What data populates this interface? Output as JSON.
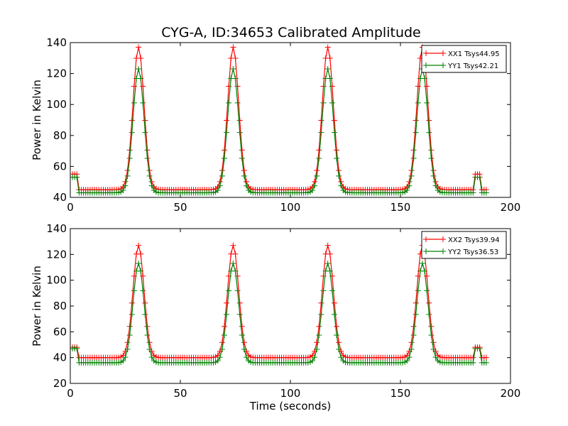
{
  "figure": {
    "title": "CYG-A, ID:34653 Calibrated Amplitude"
  },
  "chart_data": [
    {
      "type": "line",
      "title": "CYG-A, ID:34653 Calibrated Amplitude",
      "xlabel": "",
      "ylabel": "Power in Kelvin",
      "xlim": [
        0,
        200
      ],
      "ylim": [
        40,
        140
      ],
      "xticks": [
        "0",
        "50",
        "100",
        "150",
        "200"
      ],
      "yticks": [
        "40",
        "60",
        "80",
        "100",
        "120",
        "140"
      ],
      "legend_position": "top-right",
      "marker": "+",
      "series": [
        {
          "name": "XX1 Tsys44.95",
          "color": "#ff0000",
          "baseline": 45,
          "initial": 55,
          "peak_height": 137,
          "final_bump": 55
        },
        {
          "name": "YY1 Tsys42.21",
          "color": "#008000",
          "baseline": 43,
          "initial": 53,
          "peak_height": 123,
          "final_bump": 53
        }
      ],
      "peak_times": [
        31,
        74,
        117,
        160
      ],
      "peak_width": 2.5,
      "x_range": [
        1,
        189
      ],
      "final_bump_range": [
        184,
        186
      ]
    },
    {
      "type": "line",
      "title": "",
      "xlabel": "Time (seconds)",
      "ylabel": "Power in Kelvin",
      "xlim": [
        0,
        200
      ],
      "ylim": [
        20,
        140
      ],
      "xticks": [
        "0",
        "50",
        "100",
        "150",
        "200"
      ],
      "yticks": [
        "20",
        "40",
        "60",
        "80",
        "100",
        "120",
        "140"
      ],
      "legend_position": "top-right",
      "marker": "+",
      "series": [
        {
          "name": "XX2 Tsys39.94",
          "color": "#ff0000",
          "baseline": 40,
          "initial": 48,
          "peak_height": 127,
          "final_bump": 48
        },
        {
          "name": "YY2 Tsys36.53",
          "color": "#008000",
          "baseline": 36,
          "initial": 47,
          "peak_height": 113,
          "final_bump": 47
        }
      ],
      "peak_times": [
        31,
        74,
        117,
        160
      ],
      "peak_width": 2.5,
      "x_range": [
        1,
        189
      ],
      "final_bump_range": [
        184,
        186
      ]
    }
  ]
}
